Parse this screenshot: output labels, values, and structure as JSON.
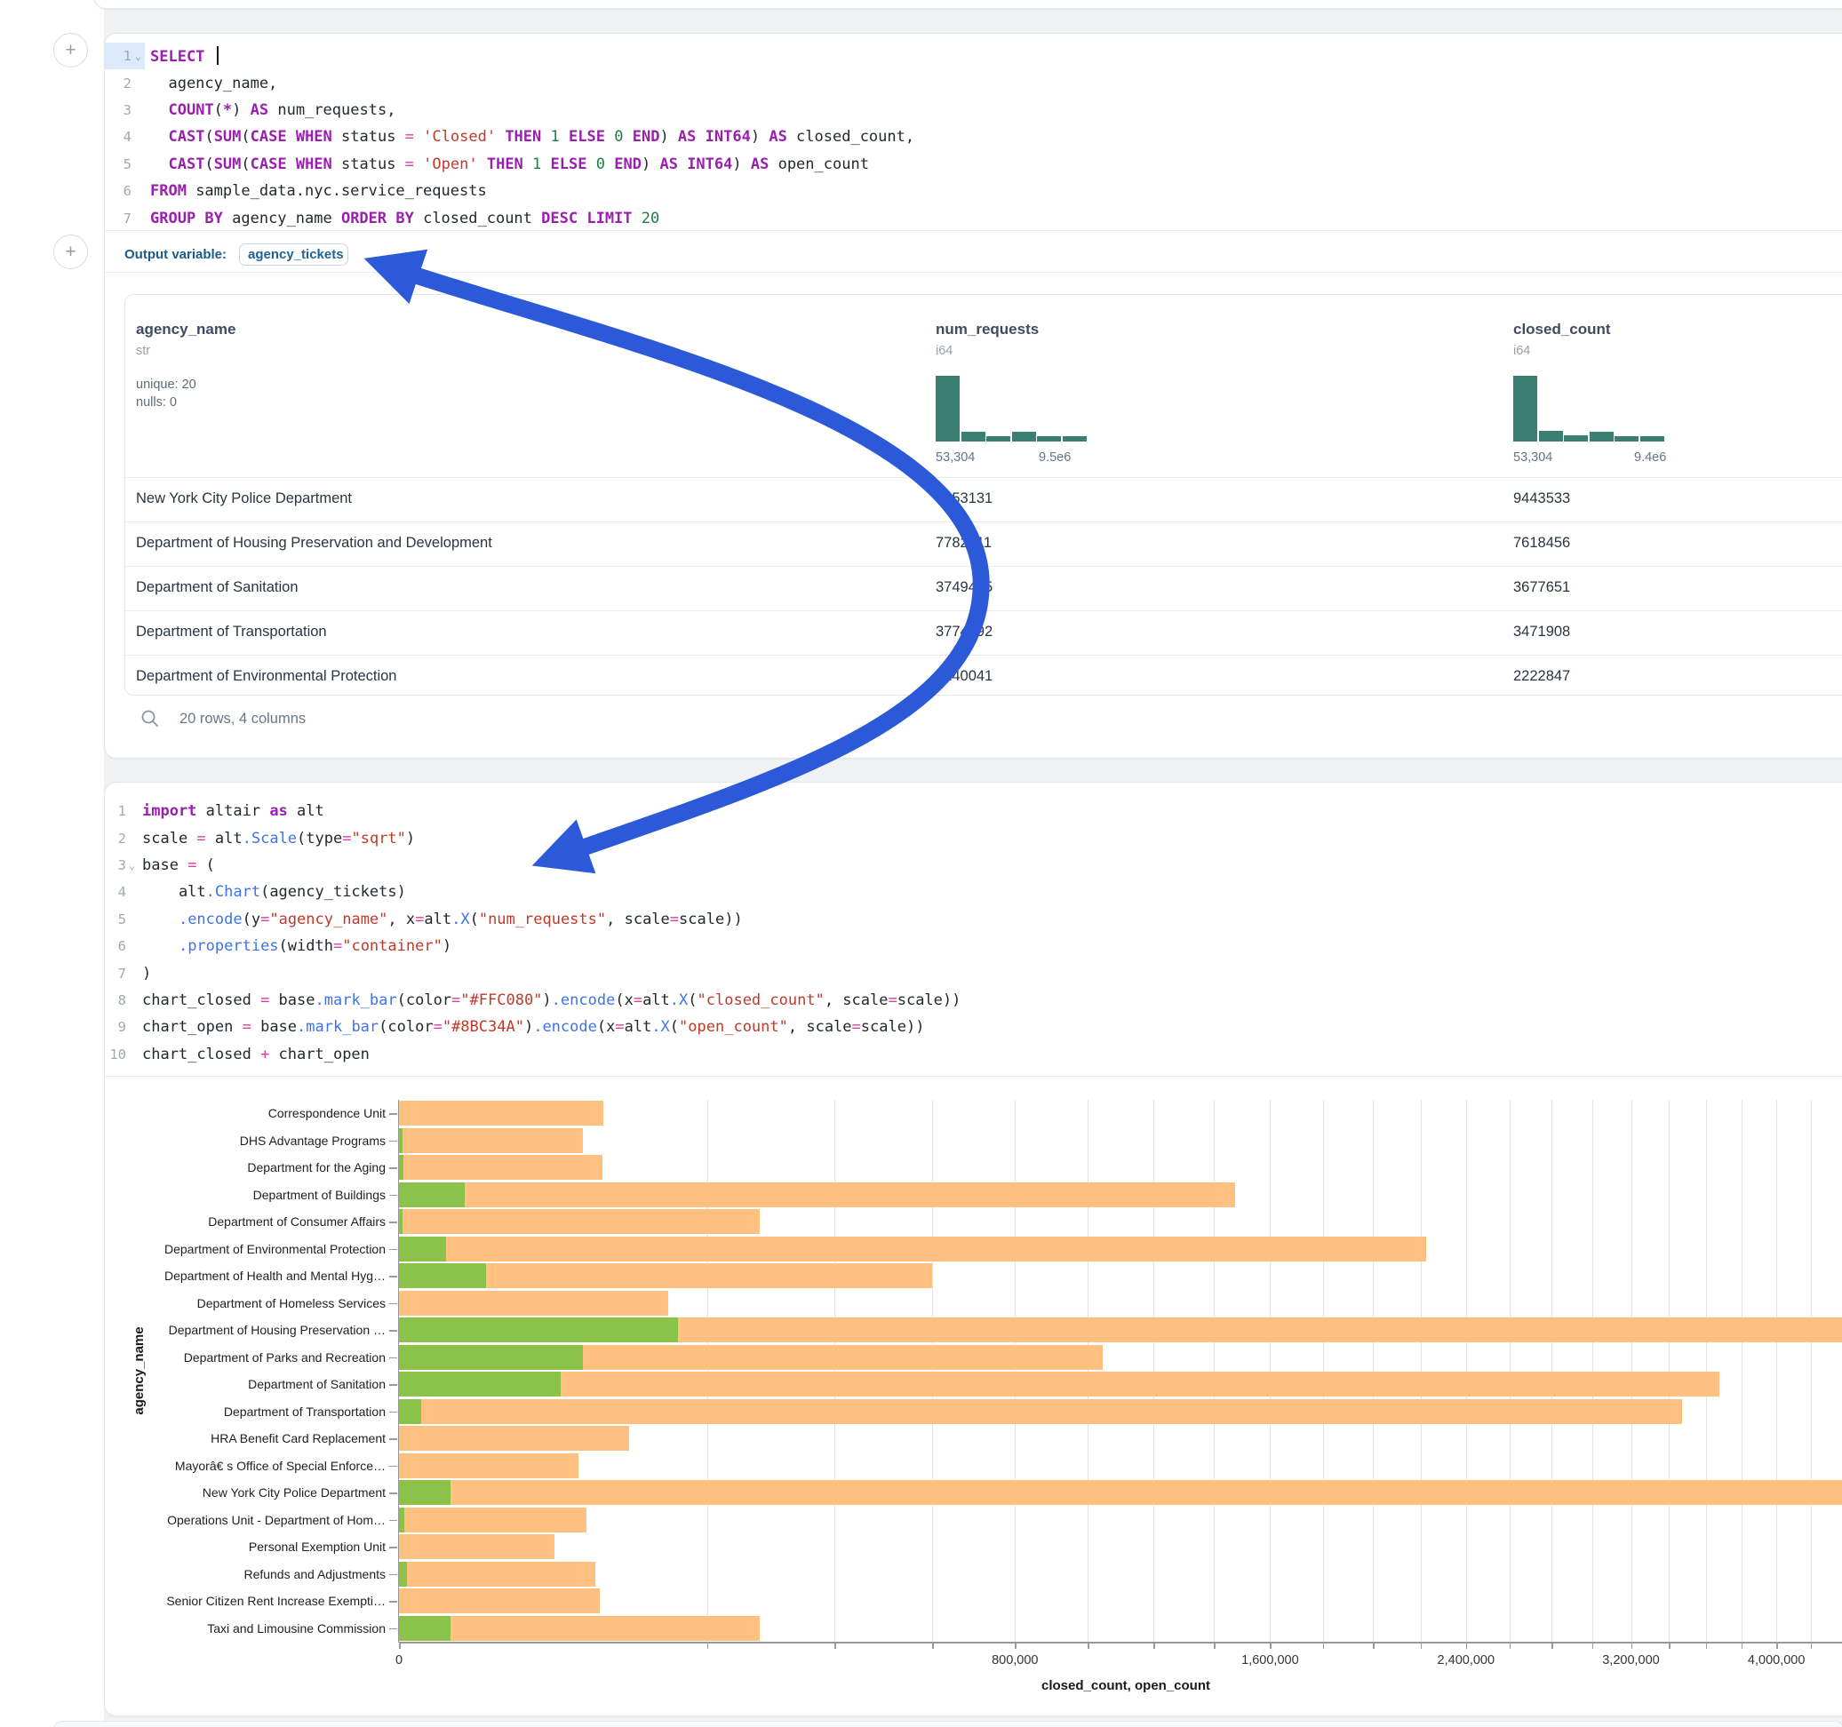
{
  "colors": {
    "histogram": "#3A7F71",
    "arrow": "#2B59D8",
    "axis": "#9A9A9A",
    "grid": "#E3E3E3",
    "closed_bar": "#FFC080",
    "open_bar": "#8BC34A"
  },
  "add_buttons": {
    "label": "+"
  },
  "sql_cell": {
    "lines": [
      {
        "num": "1",
        "chevron": true,
        "active": true,
        "tokens": [
          [
            "kw",
            "SELECT"
          ],
          [
            "caret",
            ""
          ]
        ]
      },
      {
        "num": "2",
        "chevron": false,
        "active": false,
        "tokens": [
          [
            "pl",
            "  agency_name,"
          ]
        ]
      },
      {
        "num": "3",
        "chevron": false,
        "active": false,
        "tokens": [
          [
            "pl",
            "  "
          ],
          [
            "kw",
            "COUNT"
          ],
          [
            "pl",
            "("
          ],
          [
            "kw",
            "*"
          ],
          [
            "pl",
            ") "
          ],
          [
            "kw",
            "AS"
          ],
          [
            "pl",
            " num_requests,"
          ]
        ]
      },
      {
        "num": "4",
        "chevron": false,
        "active": false,
        "tokens": [
          [
            "pl",
            "  "
          ],
          [
            "kw",
            "CAST"
          ],
          [
            "pl",
            "("
          ],
          [
            "kw",
            "SUM"
          ],
          [
            "pl",
            "("
          ],
          [
            "kw",
            "CASE WHEN"
          ],
          [
            "pl",
            " status "
          ],
          [
            "op",
            "="
          ],
          [
            "pl",
            " "
          ],
          [
            "str",
            "'Closed'"
          ],
          [
            "pl",
            " "
          ],
          [
            "kw",
            "THEN"
          ],
          [
            "pl",
            " "
          ],
          [
            "num",
            "1"
          ],
          [
            "pl",
            " "
          ],
          [
            "kw",
            "ELSE"
          ],
          [
            "pl",
            " "
          ],
          [
            "num",
            "0"
          ],
          [
            "pl",
            " "
          ],
          [
            "kw",
            "END"
          ],
          [
            "pl",
            ") "
          ],
          [
            "kw",
            "AS"
          ],
          [
            "pl",
            " "
          ],
          [
            "kw",
            "INT64"
          ],
          [
            "pl",
            ") "
          ],
          [
            "kw",
            "AS"
          ],
          [
            "pl",
            " closed_count,"
          ]
        ]
      },
      {
        "num": "5",
        "chevron": false,
        "active": false,
        "tokens": [
          [
            "pl",
            "  "
          ],
          [
            "kw",
            "CAST"
          ],
          [
            "pl",
            "("
          ],
          [
            "kw",
            "SUM"
          ],
          [
            "pl",
            "("
          ],
          [
            "kw",
            "CASE WHEN"
          ],
          [
            "pl",
            " status "
          ],
          [
            "op",
            "="
          ],
          [
            "pl",
            " "
          ],
          [
            "str",
            "'Open'"
          ],
          [
            "pl",
            " "
          ],
          [
            "kw",
            "THEN"
          ],
          [
            "pl",
            " "
          ],
          [
            "num",
            "1"
          ],
          [
            "pl",
            " "
          ],
          [
            "kw",
            "ELSE"
          ],
          [
            "pl",
            " "
          ],
          [
            "num",
            "0"
          ],
          [
            "pl",
            " "
          ],
          [
            "kw",
            "END"
          ],
          [
            "pl",
            ") "
          ],
          [
            "kw",
            "AS"
          ],
          [
            "pl",
            " "
          ],
          [
            "kw",
            "INT64"
          ],
          [
            "pl",
            ") "
          ],
          [
            "kw",
            "AS"
          ],
          [
            "pl",
            " open_count"
          ]
        ]
      },
      {
        "num": "6",
        "chevron": false,
        "active": false,
        "tokens": [
          [
            "kw",
            "FROM"
          ],
          [
            "pl",
            " sample_data.nyc.service_requests"
          ]
        ]
      },
      {
        "num": "7",
        "chevron": false,
        "active": false,
        "tokens": [
          [
            "kw",
            "GROUP BY"
          ],
          [
            "pl",
            " agency_name "
          ],
          [
            "kw",
            "ORDER BY"
          ],
          [
            "pl",
            " closed_count "
          ],
          [
            "kw",
            "DESC"
          ],
          [
            "pl",
            " "
          ],
          [
            "kw",
            "LIMIT"
          ],
          [
            "pl",
            " "
          ],
          [
            "num",
            "20"
          ]
        ]
      }
    ]
  },
  "output_section": {
    "label": "Output variable:",
    "variable": "agency_tickets"
  },
  "table": {
    "columns": [
      {
        "name": "agency_name",
        "type": "str",
        "stats": [
          "unique: 20",
          "nulls: 0"
        ]
      },
      {
        "name": "num_requests",
        "type": "i64",
        "hist": {
          "bars": [
            1,
            0.155,
            0.085,
            0.15,
            0.08,
            0.08
          ],
          "min_label": "53,304",
          "max_label": "9.5e6"
        }
      },
      {
        "name": "closed_count",
        "type": "i64",
        "hist": {
          "bars": [
            1,
            0.16,
            0.09,
            0.155,
            0.085,
            0.085
          ],
          "min_label": "53,304",
          "max_label": "9.4e6"
        }
      }
    ],
    "rows": [
      [
        "New York City Police Department",
        "9453131",
        "9443533"
      ],
      [
        "Department of Housing Preservation and Development",
        "7782211",
        "7618456"
      ],
      [
        "Department of Sanitation",
        "3749485",
        "3677651"
      ],
      [
        "Department of Transportation",
        "3774892",
        "3471908"
      ],
      [
        "Department of Environmental Protection",
        "2240041",
        "2222847"
      ]
    ],
    "footer": "20 rows, 4 columns"
  },
  "python_cell": {
    "lines": [
      {
        "num": "1",
        "chevron": false,
        "active": false,
        "tokens": [
          [
            "kw",
            "import"
          ],
          [
            "pl",
            " altair "
          ],
          [
            "kw",
            "as"
          ],
          [
            "pl",
            " alt"
          ]
        ]
      },
      {
        "num": "2",
        "chevron": false,
        "active": false,
        "tokens": [
          [
            "pl",
            "scale "
          ],
          [
            "op",
            "="
          ],
          [
            "pl",
            " alt"
          ],
          [
            "fn",
            ".Scale"
          ],
          [
            "pl",
            "(type"
          ],
          [
            "op",
            "="
          ],
          [
            "str",
            "\"sqrt\""
          ],
          [
            "pl",
            ")"
          ]
        ]
      },
      {
        "num": "3",
        "chevron": true,
        "active": false,
        "tokens": [
          [
            "pl",
            "base "
          ],
          [
            "op",
            "="
          ],
          [
            "pl",
            " ("
          ]
        ]
      },
      {
        "num": "4",
        "chevron": false,
        "active": false,
        "tokens": [
          [
            "pl",
            "    alt"
          ],
          [
            "fn",
            ".Chart"
          ],
          [
            "pl",
            "(agency_tickets)"
          ]
        ]
      },
      {
        "num": "5",
        "chevron": false,
        "active": false,
        "tokens": [
          [
            "pl",
            "    "
          ],
          [
            "fn",
            ".encode"
          ],
          [
            "pl",
            "(y"
          ],
          [
            "op",
            "="
          ],
          [
            "str",
            "\"agency_name\""
          ],
          [
            "pl",
            ", x"
          ],
          [
            "op",
            "="
          ],
          [
            "pl",
            "alt"
          ],
          [
            "fn",
            ".X"
          ],
          [
            "pl",
            "("
          ],
          [
            "str",
            "\"num_requests\""
          ],
          [
            "pl",
            ", scale"
          ],
          [
            "op",
            "="
          ],
          [
            "pl",
            "scale))"
          ]
        ]
      },
      {
        "num": "6",
        "chevron": false,
        "active": false,
        "tokens": [
          [
            "pl",
            "    "
          ],
          [
            "fn",
            ".properties"
          ],
          [
            "pl",
            "(width"
          ],
          [
            "op",
            "="
          ],
          [
            "str",
            "\"container\""
          ],
          [
            "pl",
            ")"
          ]
        ]
      },
      {
        "num": "7",
        "chevron": false,
        "active": false,
        "tokens": [
          [
            "pl",
            ")"
          ]
        ]
      },
      {
        "num": "8",
        "chevron": false,
        "active": false,
        "tokens": [
          [
            "pl",
            "chart_closed "
          ],
          [
            "op",
            "="
          ],
          [
            "pl",
            " base"
          ],
          [
            "fn",
            ".mark_bar"
          ],
          [
            "pl",
            "(color"
          ],
          [
            "op",
            "="
          ],
          [
            "str",
            "\"#FFC080\""
          ],
          [
            "pl",
            ")"
          ],
          [
            "fn",
            ".encode"
          ],
          [
            "pl",
            "(x"
          ],
          [
            "op",
            "="
          ],
          [
            "pl",
            "alt"
          ],
          [
            "fn",
            ".X"
          ],
          [
            "pl",
            "("
          ],
          [
            "str",
            "\"closed_count\""
          ],
          [
            "pl",
            ", scale"
          ],
          [
            "op",
            "="
          ],
          [
            "pl",
            "scale))"
          ]
        ]
      },
      {
        "num": "9",
        "chevron": false,
        "active": false,
        "tokens": [
          [
            "pl",
            "chart_open "
          ],
          [
            "op",
            "="
          ],
          [
            "pl",
            " base"
          ],
          [
            "fn",
            ".mark_bar"
          ],
          [
            "pl",
            "(color"
          ],
          [
            "op",
            "="
          ],
          [
            "str",
            "\"#8BC34A\""
          ],
          [
            "pl",
            ")"
          ],
          [
            "fn",
            ".encode"
          ],
          [
            "pl",
            "(x"
          ],
          [
            "op",
            "="
          ],
          [
            "pl",
            "alt"
          ],
          [
            "fn",
            ".X"
          ],
          [
            "pl",
            "("
          ],
          [
            "str",
            "\"open_count\""
          ],
          [
            "pl",
            ", scale"
          ],
          [
            "op",
            "="
          ],
          [
            "pl",
            "scale))"
          ]
        ]
      },
      {
        "num": "10",
        "chevron": false,
        "active": false,
        "tokens": [
          [
            "pl",
            "chart_closed "
          ],
          [
            "op",
            "+"
          ],
          [
            "pl",
            " chart_open"
          ]
        ]
      }
    ]
  },
  "chart_data": {
    "type": "bar",
    "orientation": "horizontal",
    "xlabel": "closed_count, open_count",
    "ylabel": "agency_name",
    "x_scale": "sqrt",
    "grid": true,
    "legend": "none",
    "x_minor_tick_step": 200000,
    "x_tick_labels": [
      {
        "v": 0,
        "label": "0"
      },
      {
        "v": 800000,
        "label": "800,000"
      },
      {
        "v": 1600000,
        "label": "1,600,000"
      },
      {
        "v": 2400000,
        "label": "2,400,000"
      },
      {
        "v": 3200000,
        "label": "3,200,000"
      },
      {
        "v": 4000000,
        "label": "4,000,000"
      }
    ],
    "categories": [
      "Correspondence Unit",
      "DHS Advantage Programs",
      "Department for the Aging",
      "Department of Buildings",
      "Department of Consumer Affairs",
      "Department of Environmental Protection",
      "Department of Health and Mental Hyg…",
      "Department of Homeless Services",
      "Department of Housing Preservation …",
      "Department of Parks and Recreation",
      "Department of Sanitation",
      "Department of Transportation",
      "HRA Benefit Card Replacement",
      "Mayorâ€ s Office of Special Enforce…",
      "New York City Police Department",
      "Operations Unit - Department of Hom…",
      "Personal Exemption Unit",
      "Refunds and Adjustments",
      "Senior Citizen Rent Increase Exempti…",
      "Taxi and Limousine Commission"
    ],
    "series": [
      {
        "name": "closed_count",
        "color": "#FFC080",
        "values": [
          88000,
          71000,
          87000,
          1475000,
          274000,
          2222847,
          600000,
          153000,
          7618456,
          1045000,
          3677651,
          3471908,
          112000,
          68000,
          9443533,
          74000,
          51000,
          81000,
          85000,
          274000
        ]
      },
      {
        "name": "open_count",
        "color": "#8BC34A",
        "values": [
          0,
          25,
          40,
          9000,
          25,
          4600,
          16000,
          0,
          163755,
          71000,
          55000,
          1000,
          0,
          0,
          5500,
          60,
          0,
          140,
          0,
          5500
        ]
      }
    ]
  }
}
